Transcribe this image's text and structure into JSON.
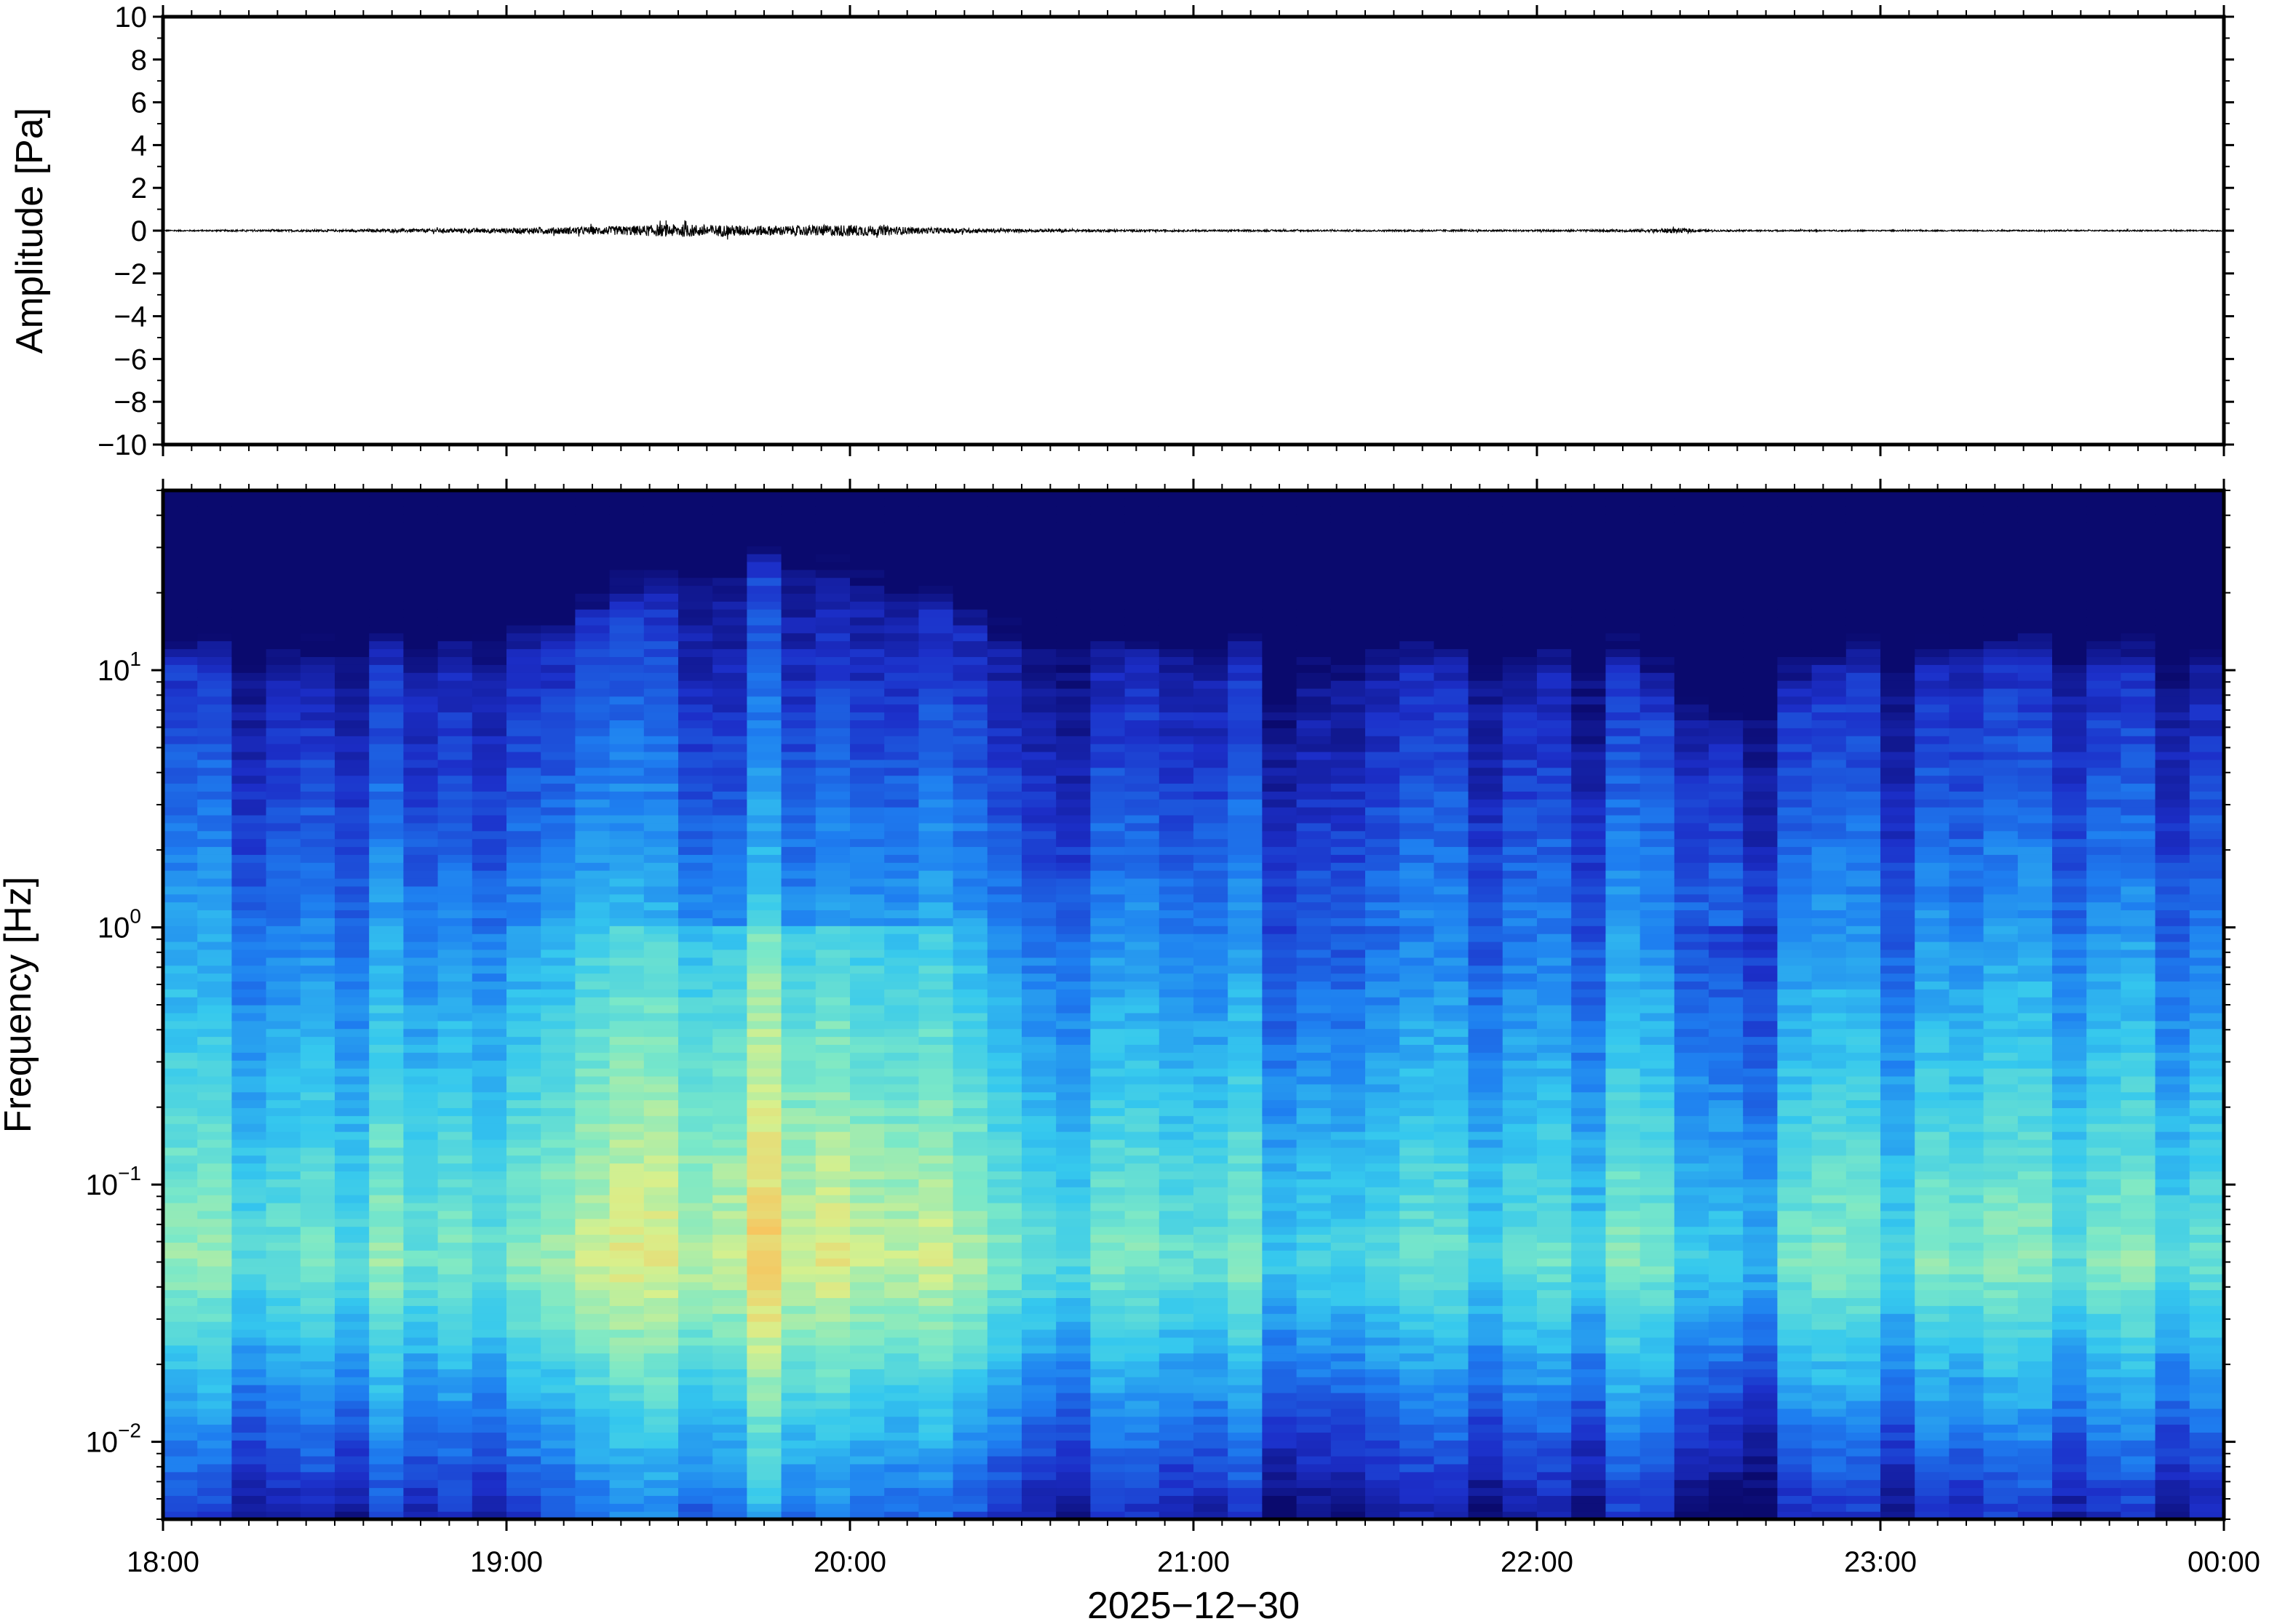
{
  "chart_data": [
    {
      "type": "line",
      "panel": "waveform",
      "ylabel": "Amplitude [Pa]",
      "ylim": [
        -10,
        10
      ],
      "yticks": [
        10,
        8,
        6,
        4,
        2,
        0,
        -2,
        -4,
        -6,
        -8,
        -10
      ],
      "ytick_labels": [
        "10",
        "8",
        "6",
        "4",
        "2",
        "0",
        "−2",
        "−4",
        "−6",
        "−8",
        "−10"
      ],
      "xlim": [
        "18:00",
        "00:00"
      ],
      "grid": false,
      "series": [
        {
          "x_hours": [
            18.0,
            18.5,
            19.0,
            19.3,
            19.5,
            19.8,
            20.0,
            20.2,
            20.5,
            21.0,
            21.5,
            22.0,
            22.3,
            22.4,
            22.5,
            23.0,
            23.5,
            24.0
          ],
          "amplitude_envelope": [
            0.03,
            0.05,
            0.12,
            0.2,
            0.3,
            0.22,
            0.28,
            0.15,
            0.07,
            0.04,
            0.04,
            0.04,
            0.06,
            0.12,
            0.04,
            0.03,
            0.03,
            0.03
          ]
        }
      ]
    },
    {
      "type": "heatmap",
      "panel": "spectrogram",
      "ylabel": "Frequency [Hz]",
      "yscale": "log",
      "ylim": [
        0.005,
        50
      ],
      "yticks": [
        {
          "base": "10",
          "exp": "1",
          "value": 10
        },
        {
          "base": "10",
          "exp": "0",
          "value": 1
        },
        {
          "base": "10",
          "exp": "−1",
          "value": 0.1
        },
        {
          "base": "10",
          "exp": "−2",
          "value": 0.01
        }
      ],
      "xlabel": "2025−12−30",
      "xticks": [
        "18:00",
        "19:00",
        "20:00",
        "21:00",
        "22:00",
        "23:00",
        "00:00"
      ],
      "xlim": [
        "18:00",
        "00:00"
      ],
      "colormap": [
        "#0a0a6e",
        "#1c2fc9",
        "#1e7ef0",
        "#35c8ee",
        "#7ae8c8",
        "#d8f08c",
        "#fac05a",
        "#f8a040"
      ],
      "time_bins": 60,
      "freq_bins": 130,
      "notes_visible": false
    }
  ]
}
